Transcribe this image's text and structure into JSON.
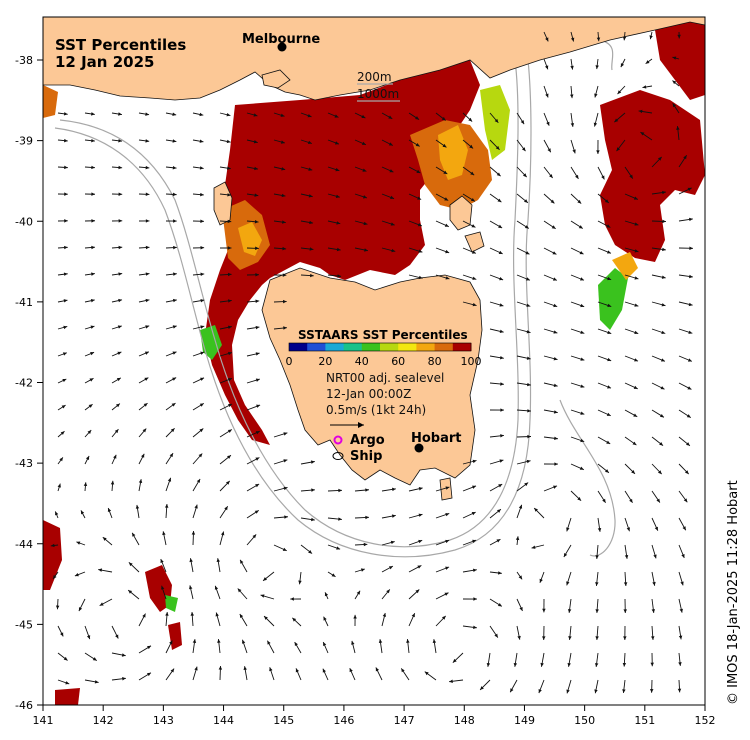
{
  "title": {
    "line1": "SST Percentiles",
    "line2": "12 Jan 2025"
  },
  "x_ticks": [
    "141",
    "142",
    "143",
    "144",
    "145",
    "146",
    "147",
    "148",
    "149",
    "150",
    "151",
    "152"
  ],
  "y_ticks": [
    "-38",
    "-39",
    "-40",
    "-41",
    "-42",
    "-43",
    "-44",
    "-45",
    "-46"
  ],
  "places": {
    "melbourne": "Melbourne",
    "hobart": "Hobart"
  },
  "depth_contours": {
    "c200": "200m",
    "c1000": "1000m"
  },
  "colorbar": {
    "title": "SSTAARS SST Percentiles",
    "ticks": [
      "0",
      "20",
      "40",
      "60",
      "80",
      "100"
    ],
    "colors": [
      "#00008b",
      "#1f4fd6",
      "#19a9d6",
      "#18c28a",
      "#3ac21e",
      "#b7d80f",
      "#f3e70f",
      "#f3a70f",
      "#d86a0c",
      "#a80000"
    ]
  },
  "current_info": {
    "line1": "NRT00 adj. sealevel",
    "line2": "12-Jan 00:00Z",
    "line3": "0.5m/s (1kt 24h)"
  },
  "markers": {
    "argo": "Argo",
    "ship": "Ship",
    "argo_color": "#e000e0"
  },
  "credit": "© IMOS 18-Jan-2025 11:28 Hobart",
  "colors": {
    "land": "#fcc896",
    "hot": "#a80000",
    "warm": "#d86a0c",
    "mid": "#f3a70f",
    "yellow": "#f3e70f",
    "green": "#3ac21e",
    "contour": "#a8a8a8"
  }
}
